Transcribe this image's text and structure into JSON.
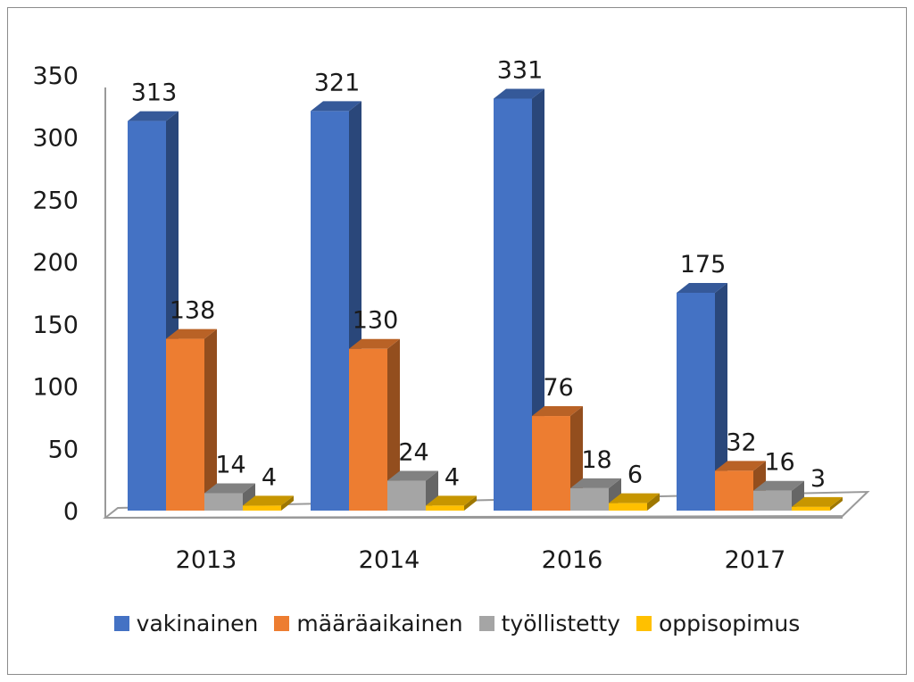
{
  "chart_data": {
    "type": "bar",
    "variant": "3d-clustered-column",
    "categories": [
      "2013",
      "2014",
      "2016",
      "2017"
    ],
    "series": [
      {
        "name": "vakinainen",
        "color": "#4472c4",
        "values": [
          313,
          321,
          331,
          175
        ]
      },
      {
        "name": "määräaikainen",
        "color": "#ed7d31",
        "values": [
          138,
          130,
          76,
          32
        ]
      },
      {
        "name": "työllistetty",
        "color": "#a5a5a5",
        "values": [
          14,
          24,
          18,
          16
        ]
      },
      {
        "name": "oppisopimus",
        "color": "#ffc000",
        "values": [
          4,
          4,
          6,
          3
        ]
      }
    ],
    "y_ticks": [
      "0",
      "50",
      "100",
      "150",
      "200",
      "250",
      "300",
      "350"
    ],
    "ylim": [
      0,
      350
    ],
    "grid": false,
    "legend": "bottom",
    "title": "",
    "xlabel": "",
    "ylabel": ""
  }
}
